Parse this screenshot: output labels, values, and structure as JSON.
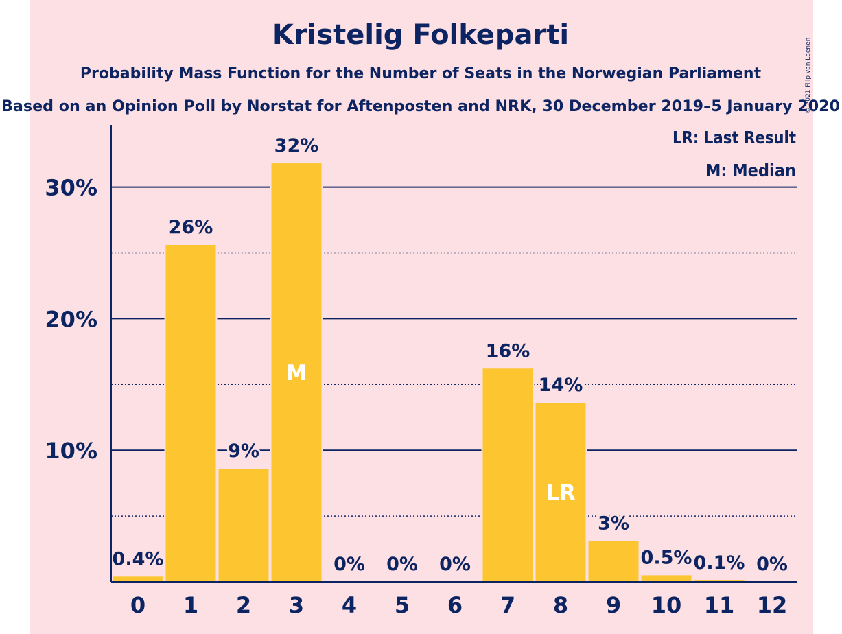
{
  "title": "Kristelig Folkeparti",
  "subtitle": "Probability Mass Function for the Number of Seats in the Norwegian Parliament",
  "subtitle2": "Based on an Opinion Poll by Norstat for Aftenposten and NRK, 30 December 2019–5 January 2020",
  "copyright": "© 2021 Filip van Laenen",
  "legend": {
    "lr": "LR: Last Result",
    "m": "M: Median"
  },
  "colors": {
    "background": "#fde0e3",
    "bar": "#fdc630",
    "text": "#0c2461",
    "marker_text": "#ffffff"
  },
  "chart_data": {
    "type": "bar",
    "categories": [
      "0",
      "1",
      "2",
      "3",
      "4",
      "5",
      "6",
      "7",
      "8",
      "9",
      "10",
      "11",
      "12"
    ],
    "values": [
      0.4,
      25.6,
      8.6,
      31.8,
      0,
      0,
      0,
      16.2,
      13.6,
      3.1,
      0.5,
      0.1,
      0
    ],
    "data_labels": [
      "0.4%",
      "26%",
      "9%",
      "32%",
      "0%",
      "0%",
      "0%",
      "16%",
      "14%",
      "3%",
      "0.5%",
      "0.1%",
      "0%"
    ],
    "markers": [
      {
        "category": "3",
        "label": "M"
      },
      {
        "category": "8",
        "label": "LR"
      }
    ],
    "ylim": [
      0,
      34.8
    ],
    "yticks": [
      10,
      20,
      30
    ],
    "ytick_labels": [
      "10%",
      "20%",
      "30%"
    ],
    "minor_gridlines": [
      5,
      15,
      25
    ],
    "grid": true,
    "legend_position": "top-right"
  }
}
